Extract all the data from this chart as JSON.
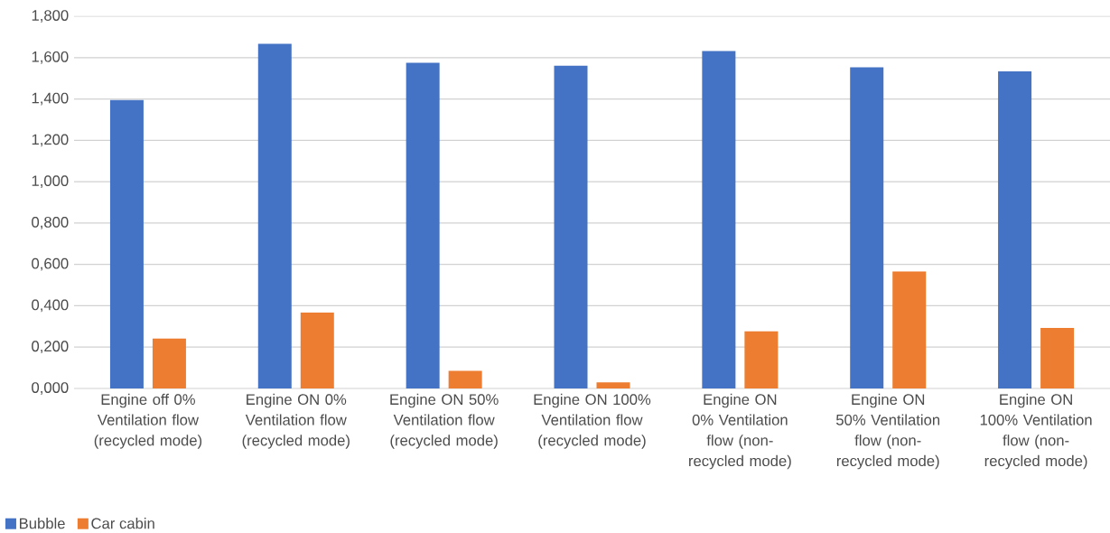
{
  "chart_data": {
    "type": "bar",
    "categories": [
      "Engine off 0% Ventilation flow (recycled mode)",
      "Engine ON 0% Ventilation flow (recycled mode)",
      "Engine ON 50% Ventilation flow (recycled mode)",
      "Engine ON 100% Ventilation flow (recycled mode)",
      "Engine ON 0% Ventilation flow (non-recycled mode)",
      "Engine ON 50% Ventilation flow (non-recycled mode)",
      "Engine  ON 100% Ventilation flow (non-recycled mode)"
    ],
    "series": [
      {
        "name": "Bubble",
        "color": "#4472c4",
        "values": [
          1.395,
          1.667,
          1.575,
          1.561,
          1.632,
          1.553,
          1.533
        ]
      },
      {
        "name": "Car cabin",
        "color": "#ed7d31",
        "values": [
          0.241,
          0.367,
          0.085,
          0.03,
          0.276,
          0.566,
          0.293
        ]
      }
    ],
    "ylim": [
      0,
      1.8
    ],
    "yticks": [
      {
        "value": 0,
        "label": "0,000"
      },
      {
        "value": 0.2,
        "label": "0,200"
      },
      {
        "value": 0.4,
        "label": "0,400"
      },
      {
        "value": 0.6,
        "label": "0,600"
      },
      {
        "value": 0.8,
        "label": "0,800"
      },
      {
        "value": 1.0,
        "label": "1,000"
      },
      {
        "value": 1.2,
        "label": "1,200"
      },
      {
        "value": 1.4,
        "label": "1,400"
      },
      {
        "value": 1.6,
        "label": "1,600"
      },
      {
        "value": 1.8,
        "label": "1,800"
      }
    ],
    "grid": "y",
    "legend": "bottom left"
  }
}
